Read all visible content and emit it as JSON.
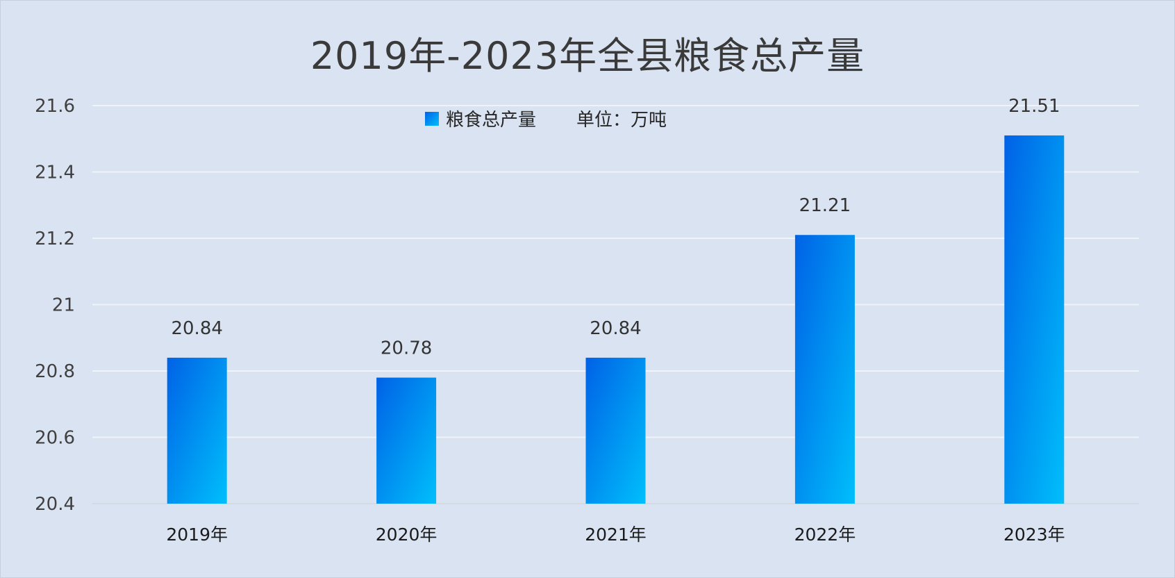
{
  "chart_data": {
    "type": "bar",
    "title": "2019年-2023年全县粮食总产量",
    "categories": [
      "2019年",
      "2020年",
      "2021年",
      "2022年",
      "2023年"
    ],
    "series": [
      {
        "name": "粮食总产量",
        "values": [
          20.84,
          20.78,
          20.84,
          21.21,
          21.51
        ]
      }
    ],
    "data_labels": [
      "20.84",
      "20.78",
      "20.84",
      "21.21",
      "21.51"
    ],
    "unit_note": "单位：万吨",
    "ylim": [
      20.4,
      21.6
    ],
    "yticks": [
      20.4,
      20.6,
      20.8,
      21,
      21.2,
      21.4,
      21.6
    ],
    "ytick_labels": [
      "20.4",
      "20.6",
      "20.8",
      "21",
      "21.2",
      "21.4",
      "21.6"
    ],
    "grid": true,
    "legend_position": "top-center",
    "colors": {
      "bar_start": "#0062e6",
      "bar_end": "#00bffb",
      "background": "#dae3f2",
      "grid": "#f0f3f8"
    }
  }
}
